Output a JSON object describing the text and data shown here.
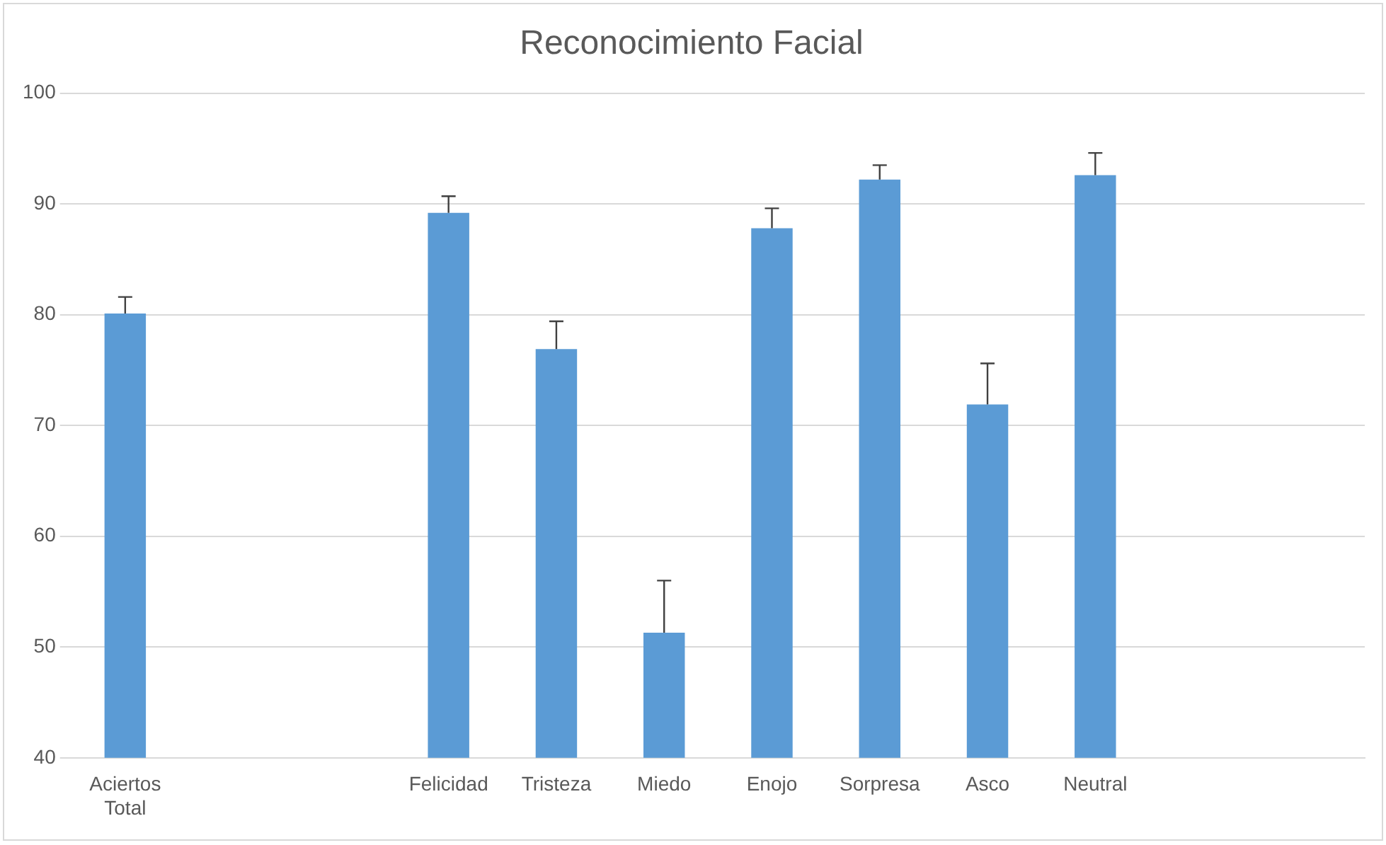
{
  "chart_data": {
    "type": "bar",
    "title": "Reconocimiento Facial",
    "categories": [
      "Aciertos Total",
      null,
      null,
      "Felicidad",
      "Tristeza",
      "Miedo",
      "Enojo",
      "Sorpresa",
      "Asco",
      "Neutral",
      null,
      null
    ],
    "values": [
      80.1,
      null,
      null,
      89.2,
      76.9,
      51.3,
      87.8,
      92.2,
      71.9,
      92.6,
      null,
      null
    ],
    "errors": [
      [
        80.1,
        81.6
      ],
      null,
      null,
      [
        89.2,
        90.7
      ],
      [
        76.9,
        79.4
      ],
      [
        51.3,
        56
      ],
      [
        87.8,
        89.6
      ],
      [
        92.2,
        93.5
      ],
      [
        71.9,
        75.6
      ],
      [
        92.6,
        94.6
      ],
      null,
      null
    ],
    "color": "#5b9bd5",
    "ylim": [
      40,
      100
    ],
    "yticks": [
      40,
      50,
      60,
      70,
      80,
      90,
      100
    ],
    "grid": "y",
    "legend": false
  }
}
